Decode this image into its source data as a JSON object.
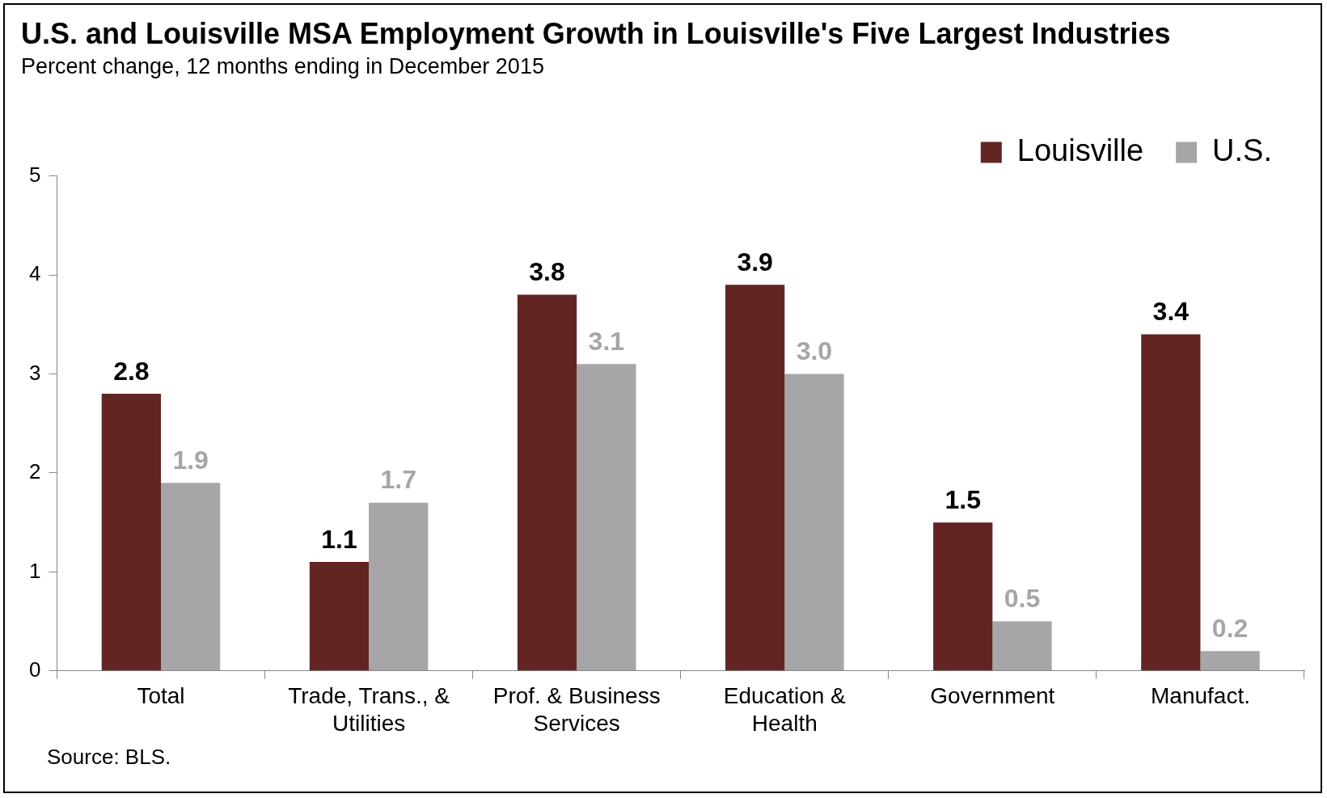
{
  "chart_data": {
    "type": "bar",
    "title": "U.S. and Louisville MSA Employment Growth in Louisville's Five Largest Industries",
    "subtitle": "Percent change, 12 months ending in December 2015",
    "categories": [
      "Total",
      "Trade, Trans., & Utilities",
      "Prof. & Business Services",
      "Education & Health",
      "Government",
      "Manufact."
    ],
    "series": [
      {
        "name": "Louisville",
        "color": "#632523",
        "values": [
          2.8,
          1.1,
          3.8,
          3.9,
          1.5,
          3.4
        ],
        "value_labels": [
          "2.8",
          "1.1",
          "3.8",
          "3.9",
          "1.5",
          "3.4"
        ]
      },
      {
        "name": "U.S.",
        "color": "#a6a6a6",
        "values": [
          1.9,
          1.7,
          3.1,
          3.0,
          0.5,
          0.2
        ],
        "value_labels": [
          "1.9",
          "1.7",
          "3.1",
          "3.0",
          "0.5",
          "0.2"
        ]
      }
    ],
    "ylim": [
      0,
      5
    ],
    "yticks": [
      0,
      1,
      2,
      3,
      4,
      5
    ],
    "grid": false,
    "legend": "top right",
    "annotations": [
      "Source: BLS."
    ]
  }
}
